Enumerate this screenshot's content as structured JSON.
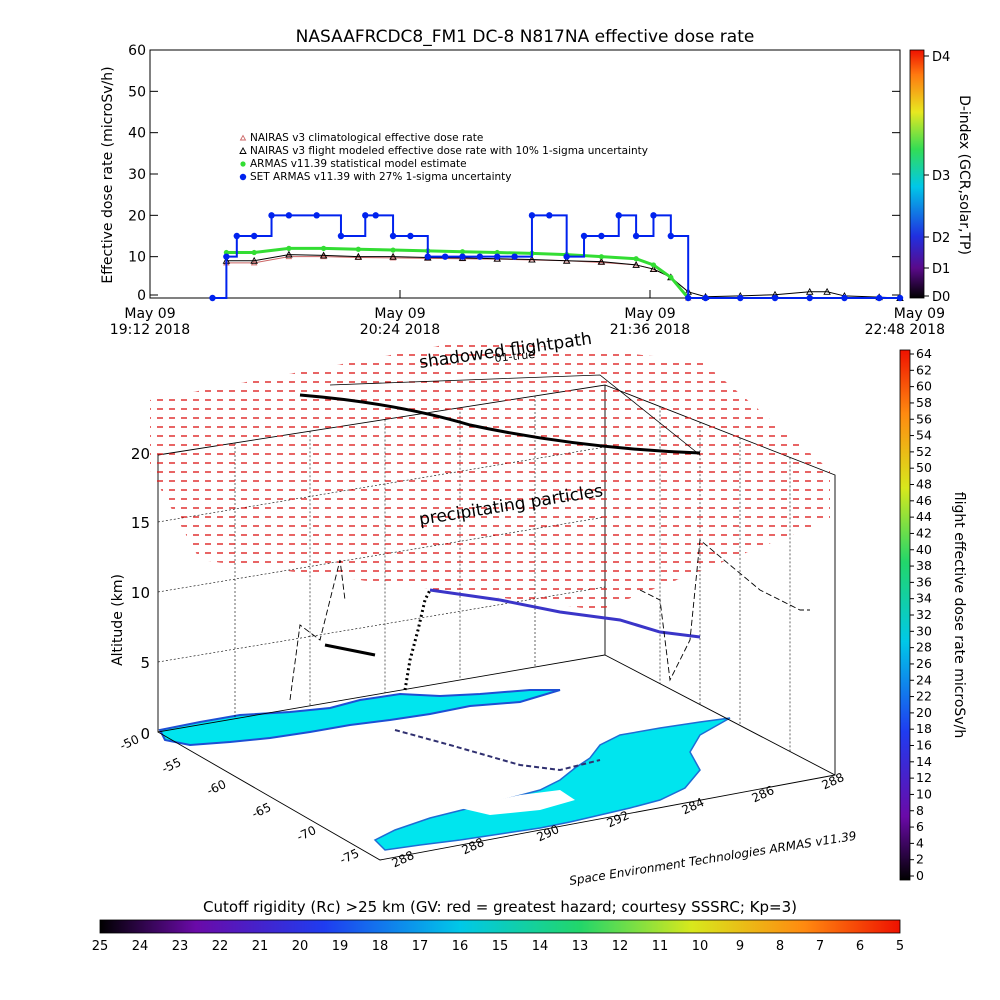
{
  "title": "NASAAFRCDC8_FM1 DC-8    N817NA effective dose rate",
  "top_chart": {
    "ylabel": "Effective dose rate (microSv/h)",
    "yticks": [
      "0",
      "10",
      "20",
      "30",
      "40",
      "50",
      "60"
    ],
    "xticks": [
      {
        "line1": "May 09",
        "line2": "19:12 2018"
      },
      {
        "line1": "May 09",
        "line2": "20:24 2018"
      },
      {
        "line1": "May 09",
        "line2": "21:36 2018"
      },
      {
        "line1": "May 09",
        "line2": "22:48 2018"
      }
    ],
    "legend": [
      "NAIRAS v3 climatological effective dose rate",
      "NAIRAS v3 flight modeled effective dose rate with 10% 1-sigma uncertainty",
      "ARMAS v11.39 statistical model estimate",
      "SET ARMAS v11.39 with 27% 1-sigma uncertainty"
    ],
    "dindex_label": "D-index (GCR,solar,TP)",
    "dindex_ticks": [
      "D0",
      "D1",
      "D2",
      "D3",
      "D4"
    ]
  },
  "chart_data": [
    {
      "type": "line",
      "title": "NASAAFRCDC8_FM1 DC-8    N817NA effective dose rate",
      "xlabel": "",
      "ylabel": "Effective dose rate (microSv/h)",
      "xlim": [
        0,
        216
      ],
      "ylim": [
        0,
        60
      ],
      "x_unit": "minutes after May 09 19:12 2018",
      "series": [
        {
          "name": "NAIRAS v3 climatological effective dose rate",
          "color": "#cc6666",
          "x": [
            22,
            30,
            40,
            50,
            60,
            70,
            80,
            90,
            100,
            110,
            120,
            130,
            140,
            145,
            150,
            155
          ],
          "y": [
            8.5,
            8.5,
            10,
            10,
            9.8,
            9.7,
            9.6,
            9.5,
            9.4,
            9.2,
            9,
            8.6,
            8,
            7,
            5,
            0
          ]
        },
        {
          "name": "NAIRAS v3 flight modeled effective dose rate with 10% 1-sigma uncertainty",
          "color": "#000000",
          "x": [
            22,
            30,
            40,
            50,
            60,
            70,
            80,
            90,
            100,
            110,
            120,
            130,
            140,
            145,
            150,
            155,
            160,
            170,
            180,
            190,
            195,
            200,
            210,
            216
          ],
          "y": [
            9,
            9,
            10.5,
            10.3,
            10,
            10,
            9.8,
            9.7,
            9.5,
            9.3,
            9,
            8.8,
            8,
            7,
            5,
            1.5,
            0.3,
            0.5,
            0.8,
            1.5,
            1.5,
            0.5,
            0.2,
            0
          ]
        },
        {
          "name": "ARMAS v11.39 statistical model estimate",
          "color": "#33dd33",
          "x": [
            22,
            30,
            40,
            50,
            60,
            70,
            80,
            90,
            100,
            110,
            120,
            130,
            140,
            145,
            150,
            155
          ],
          "y": [
            11,
            11,
            12,
            12,
            11.8,
            11.6,
            11.4,
            11.2,
            11,
            10.8,
            10.5,
            10,
            9.5,
            8,
            5,
            0
          ]
        },
        {
          "name": "SET ARMAS v11.39 with 27% 1-sigma uncertainty",
          "color": "#0022ee",
          "x": [
            18,
            22,
            25,
            30,
            35,
            40,
            48,
            55,
            62,
            65,
            70,
            75,
            80,
            85,
            90,
            95,
            100,
            105,
            110,
            115,
            120,
            125,
            130,
            135,
            140,
            145,
            150,
            155,
            160,
            170,
            180,
            190,
            200,
            210,
            216
          ],
          "y": [
            0,
            10,
            15,
            15,
            20,
            20,
            20,
            15,
            20,
            20,
            15,
            15,
            10,
            10,
            10,
            10,
            10,
            10,
            20,
            20,
            10,
            15,
            15,
            20,
            15,
            20,
            15,
            0,
            0,
            0,
            0,
            0,
            0,
            0,
            0
          ]
        }
      ]
    },
    {
      "type": "scatter",
      "title": "",
      "xlabel": "",
      "ylabel": "Altitude (km)",
      "zticks": [
        "0",
        "5",
        "10",
        "15",
        "20"
      ],
      "lat_ticks": [
        "-50",
        "-55",
        "-60",
        "-65",
        "-70",
        "-75"
      ],
      "lon_ticks": [
        "288",
        "288",
        "290",
        "292",
        "284",
        "286",
        "288"
      ],
      "annotations": [
        "shadowed flightpath",
        "01-true",
        "precipitating particles",
        "Space Environment Technologies ARMAS v11.39"
      ],
      "series": [
        {
          "name": "flight altitude (km)",
          "x": [
            0,
            0.15,
            0.3,
            0.45,
            0.6,
            0.75,
            0.9,
            1.0
          ],
          "y": [
            0,
            6,
            6,
            10.5,
            10,
            9.5,
            8.5,
            0
          ]
        }
      ]
    }
  ],
  "right_colorbar": {
    "label": "flight effective dose rate microSv/h",
    "ticks": [
      "0",
      "2",
      "4",
      "6",
      "8",
      "10",
      "12",
      "14",
      "16",
      "18",
      "20",
      "22",
      "24",
      "26",
      "28",
      "30",
      "32",
      "34",
      "36",
      "38",
      "40",
      "42",
      "44",
      "46",
      "48",
      "50",
      "52",
      "54",
      "56",
      "58",
      "60",
      "62",
      "64"
    ]
  },
  "bottom_colorbar": {
    "label": "Cutoff rigidity (Rc) >25 km (GV: red = greatest hazard; courtesy SSSRC; Kp=3)",
    "ticks": [
      "25",
      "24",
      "23",
      "22",
      "21",
      "20",
      "19",
      "18",
      "17",
      "16",
      "15",
      "14",
      "13",
      "12",
      "11",
      "10",
      "9",
      "8",
      "7",
      "6",
      "5"
    ]
  },
  "credit": "Space Environment Technologies ARMAS v11.39",
  "plot3d_annotations": {
    "shadowed": "shadowed flightpath",
    "sub": "01-true",
    "precip": "precipitating particles"
  }
}
